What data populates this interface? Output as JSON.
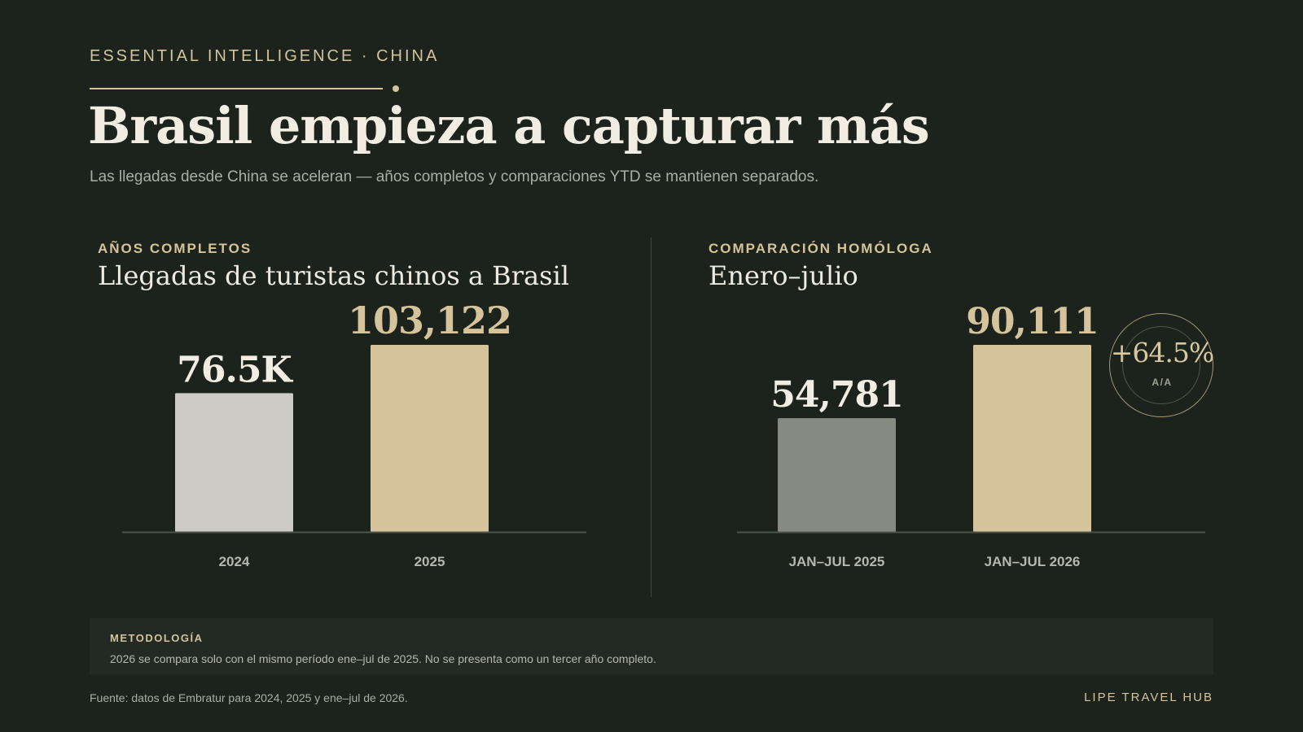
{
  "header": {
    "eyebrow": "ESSENTIAL INTELLIGENCE · CHINA",
    "title": "Brasil empieza a capturar más",
    "subtitle": "Las llegadas desde China se aceleran — años completos y comparaciones YTD se mantienen separados."
  },
  "chart_data": [
    {
      "type": "bar",
      "kicker": "AÑOS COMPLETOS",
      "title": "Llegadas de turistas chinos a Brasil",
      "categories": [
        "2024",
        "2025"
      ],
      "values": [
        76500,
        103122
      ],
      "value_labels": [
        "76.5K",
        "103,122"
      ],
      "colors": [
        "#cdcac3",
        "#d5c39c"
      ],
      "label_colors": [
        "#f2ede2",
        "#d5c39c"
      ],
      "ylim": [
        0,
        105000
      ]
    },
    {
      "type": "bar",
      "kicker": "COMPARACIÓN HOMÓLOGA",
      "title": "Enero–julio",
      "categories": [
        "JAN–JUL 2025",
        "JAN–JUL 2026"
      ],
      "values": [
        54781,
        90111
      ],
      "value_labels": [
        "54,781",
        "90,111"
      ],
      "colors": [
        "#878a80",
        "#d5c39c"
      ],
      "label_colors": [
        "#f2ede2",
        "#d5c39c"
      ],
      "ylim": [
        0,
        105000
      ],
      "badge": {
        "value": "+64.5%",
        "sub": "A/A"
      }
    }
  ],
  "methodology": {
    "kicker": "METODOLOGÍA",
    "text": "2026 se compara solo con el mismo período ene–jul de 2025. No se presenta como un tercer año completo."
  },
  "footer": {
    "source": "Fuente: datos de Embratur para 2024, 2025 y ene–jul de 2026.",
    "brand": "LIPE TRAVEL HUB"
  },
  "colors": {
    "background": "#1b231c",
    "accent": "#d4c39b",
    "axis": "#4a544b"
  }
}
